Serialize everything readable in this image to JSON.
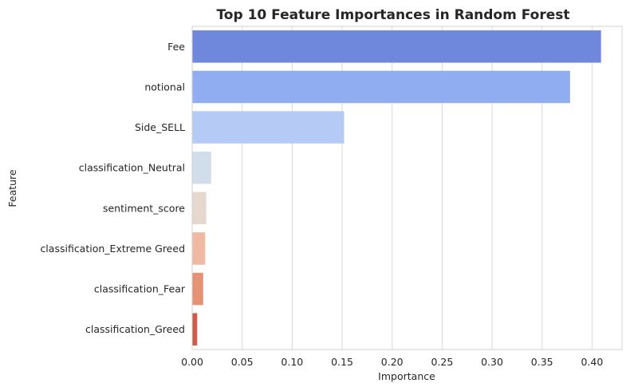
{
  "chart_data": {
    "type": "bar",
    "orientation": "horizontal",
    "title": "Top 10 Feature Importances in Random Forest",
    "xlabel": "Importance",
    "ylabel": "Feature",
    "categories": [
      "Fee",
      "notional",
      "Side_SELL",
      "classification_Neutral",
      "sentiment_score",
      "classification_Extreme Greed",
      "classification_Fear",
      "classification_Greed"
    ],
    "values": [
      0.409,
      0.378,
      0.152,
      0.019,
      0.014,
      0.013,
      0.011,
      0.005
    ],
    "colors": [
      "#6f88dc",
      "#8fadf0",
      "#b5cbf5",
      "#d2ddec",
      "#e6d7cf",
      "#efb9a2",
      "#e59277",
      "#d05a4c"
    ],
    "xlim": [
      0,
      0.43
    ],
    "xticks": [
      "0.00",
      "0.05",
      "0.10",
      "0.15",
      "0.20",
      "0.25",
      "0.30",
      "0.35",
      "0.40"
    ],
    "grid": true
  }
}
